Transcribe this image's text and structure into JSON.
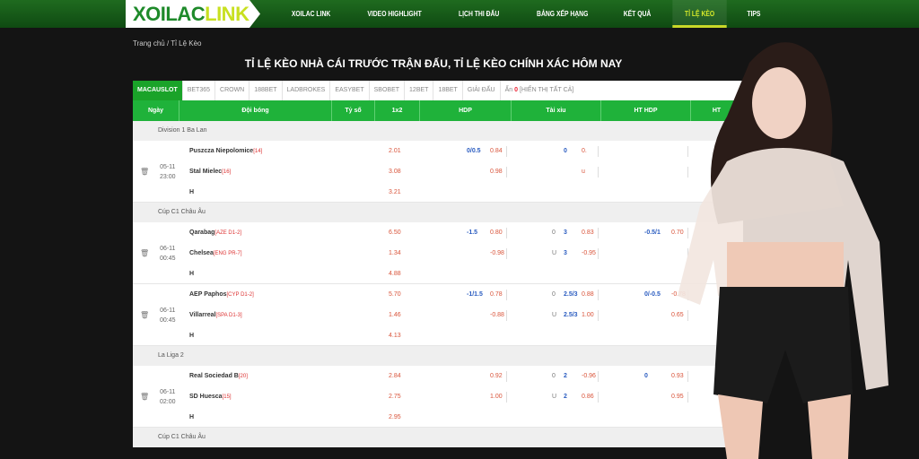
{
  "nav": {
    "logo_a": "XOILAC",
    "logo_b": "LINK",
    "items": [
      "XOILAC LINK",
      "VIDEO HIGHLIGHT",
      "LỊCH THI ĐẤU",
      "BẢNG XẾP HẠNG",
      "KẾT QUẢ",
      "TỈ LỆ KÈO",
      "TIPS"
    ],
    "active": 5
  },
  "breadcrumb": "Trang chủ  /  Tỉ Lệ Kèo",
  "title": "TỈ LỆ KÈO NHÀ CÁI TRƯỚC TRẬN ĐẤU, TỈ LỆ KÈO CHÍNH XÁC HÔM NAY",
  "tabs": [
    "MACAUSLOT",
    "BET365",
    "CROWN",
    "188BET",
    "LADBROKES",
    "EASYBET",
    "SBOBET",
    "12BET",
    "18BET",
    "GIẢI ĐẤU"
  ],
  "hide": {
    "label": "Ẩn",
    "count": "0",
    "show_all": "[HIỂN THỊ TẤT CẢ]"
  },
  "columns": [
    "Ngày",
    "Đội bóng",
    "Tỷ số",
    "1x2",
    "HDP",
    "Tài xỉu",
    "HT HDP",
    "HT"
  ],
  "groups": [
    {
      "league": "Division 1 Ba Lan",
      "matches": [
        {
          "date": "05-11",
          "time": "23:00",
          "home": "Puszcza Niepolomice",
          "home_tag": "[14]",
          "away": "Stal Mielec",
          "away_tag": "[16]",
          "x": [
            "2.01",
            "3.08",
            "3.21"
          ],
          "hdp": [
            "0/0.5",
            "0.84",
            "",
            "0.98"
          ],
          "ou": [
            "",
            "0",
            "0.",
            "",
            " ",
            "u",
            ""
          ]
        }
      ]
    },
    {
      "league": "Cúp C1 Châu Âu",
      "matches": [
        {
          "date": "06-11",
          "time": "00:45",
          "home": "Qarabag",
          "home_tag": "[AZE D1-2]",
          "away": "Chelsea",
          "away_tag": "[ENG PR-7]",
          "x": [
            "6.50",
            "1.34",
            "4.88"
          ],
          "hdp": [
            "-1.5",
            "0.80",
            "",
            "-0.98"
          ],
          "ou": [
            "0",
            "3",
            "0.83",
            "U",
            "3",
            "-0.95"
          ],
          "ht": [
            "-0.5/1",
            "0.70",
            "",
            ""
          ]
        },
        {
          "date": "06-11",
          "time": "00:45",
          "home": "AEP Paphos",
          "home_tag": "[CYP D1-2]",
          "away": "Villarreal",
          "away_tag": "[SPA D1-3]",
          "x": [
            "5.70",
            "1.46",
            "4.13"
          ],
          "hdp": [
            "-1/1.5",
            "0.78",
            "",
            "-0.88"
          ],
          "ou": [
            "0",
            "2.5/3",
            "0.88",
            "U",
            "2.5/3",
            "1.00"
          ],
          "ht": [
            "0/-0.5",
            "-0.78",
            "",
            "0.65"
          ]
        }
      ]
    },
    {
      "league": "La Liga 2",
      "matches": [
        {
          "date": "06-11",
          "time": "02:00",
          "home": "Real Sociedad B",
          "home_tag": "[20]",
          "away": "SD Huesca",
          "away_tag": "[15]",
          "x": [
            "2.84",
            "2.75",
            "2.95"
          ],
          "hdp": [
            "",
            "0.92",
            "",
            "1.00"
          ],
          "ou": [
            "0",
            "2",
            "-0.96",
            "U",
            "2",
            "0.86"
          ],
          "ht": [
            "0",
            "0.93",
            "",
            "0.95"
          ]
        }
      ]
    },
    {
      "league": "Cúp C1 Châu Âu",
      "matches": []
    }
  ],
  "draw_label": "H"
}
